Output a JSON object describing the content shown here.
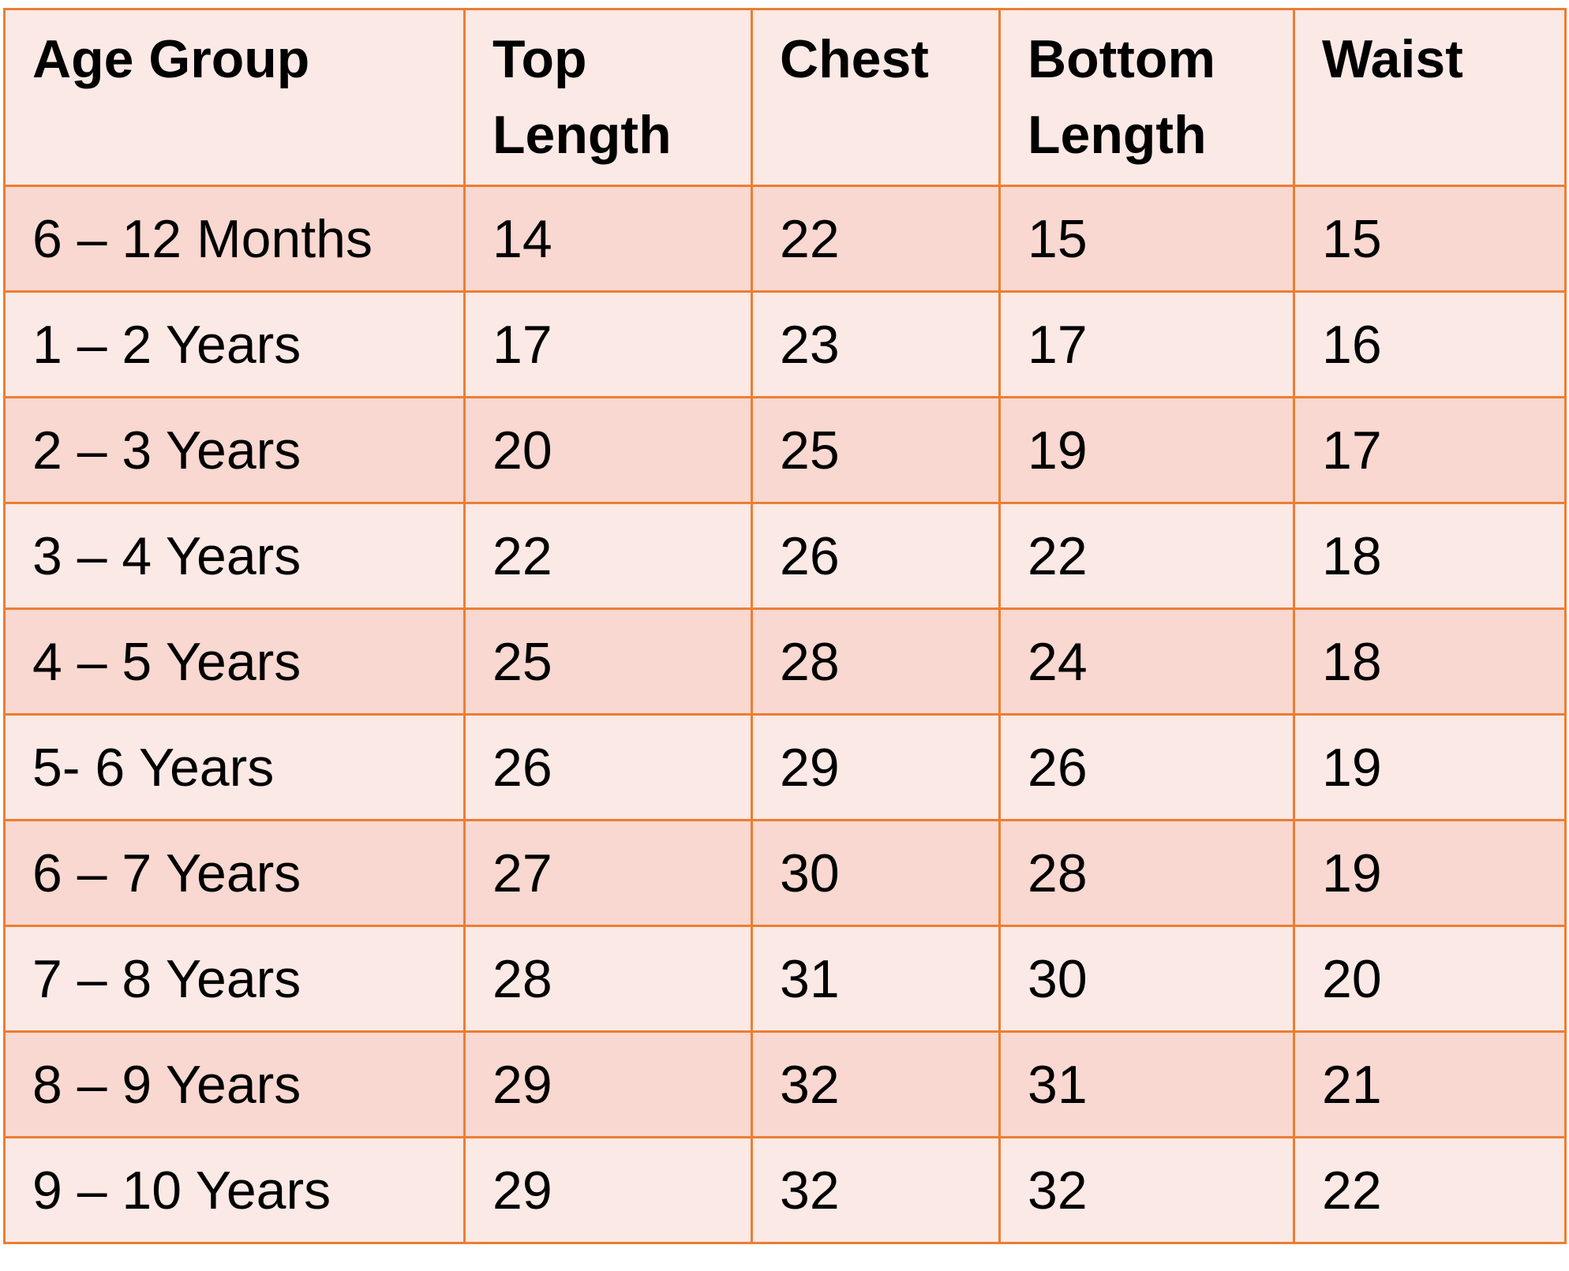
{
  "table": {
    "header": [
      "Age Group",
      "Top Length",
      "Chest",
      "Bottom Length",
      "Waist"
    ],
    "rows": [
      [
        "6 – 12 Months",
        14,
        22,
        15,
        15
      ],
      [
        "1 – 2 Years",
        17,
        23,
        17,
        16
      ],
      [
        "2 – 3 Years",
        20,
        25,
        19,
        17
      ],
      [
        "3 – 4 Years",
        22,
        26,
        22,
        18
      ],
      [
        "4 – 5 Years",
        25,
        28,
        24,
        18
      ],
      [
        "5- 6 Years",
        26,
        29,
        26,
        19
      ],
      [
        "6 – 7 Years",
        27,
        30,
        28,
        19
      ],
      [
        "7 – 8 Years",
        28,
        31,
        30,
        20
      ],
      [
        "8 – 9 Years",
        29,
        32,
        31,
        21
      ],
      [
        "9 – 10 Years",
        29,
        32,
        32,
        22
      ]
    ]
  }
}
